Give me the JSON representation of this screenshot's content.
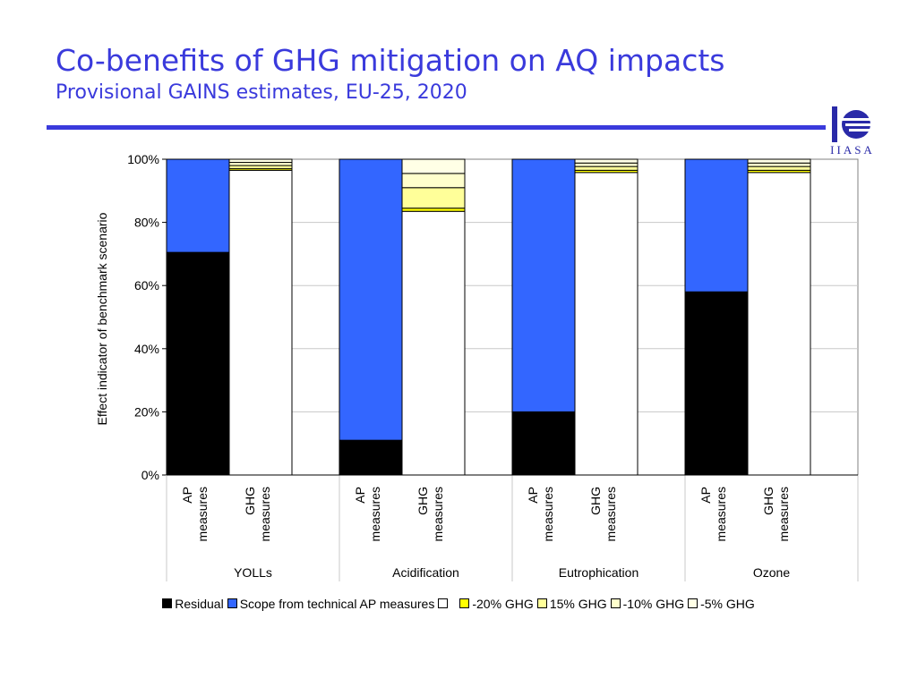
{
  "slide": {
    "title": "Co-benefits of GHG mitigation on AQ impacts",
    "subtitle": "Provisional GAINS estimates, EU-25, 2020",
    "title_color": "#3a3adc",
    "logo_text": "IIASA"
  },
  "chart_data": {
    "type": "bar",
    "stacked": true,
    "title": "",
    "xlabel": "",
    "ylabel": "Effect indicator of benchmark scenario",
    "ylim": [
      0,
      100
    ],
    "yticks": [
      "0%",
      "20%",
      "40%",
      "60%",
      "80%",
      "100%"
    ],
    "groups": [
      {
        "label": "YOLLs",
        "bars": [
          {
            "label": "AP measures",
            "segments": [
              {
                "series": "Residual",
                "value": 70.5
              },
              {
                "series": "Scope from technical AP measures",
                "value": 29.5
              }
            ]
          },
          {
            "label": "GHG measures",
            "segments": [
              {
                "series": "",
                "value": 96.5
              },
              {
                "series": "-20% GHG",
                "value": 0.5
              },
              {
                "series": "15% GHG",
                "value": 1.0
              },
              {
                "series": "-10% GHG",
                "value": 1.0
              },
              {
                "series": "-5% GHG",
                "value": 1.0
              }
            ]
          }
        ]
      },
      {
        "label": "Acidification",
        "bars": [
          {
            "label": "AP measures",
            "segments": [
              {
                "series": "Residual",
                "value": 11
              },
              {
                "series": "Scope from technical AP measures",
                "value": 89
              }
            ]
          },
          {
            "label": "GHG measures",
            "segments": [
              {
                "series": "",
                "value": 83.5
              },
              {
                "series": "-20% GHG",
                "value": 1.0
              },
              {
                "series": "15% GHG",
                "value": 6.5
              },
              {
                "series": "-10% GHG",
                "value": 4.5
              },
              {
                "series": "-5% GHG",
                "value": 4.5
              }
            ]
          }
        ]
      },
      {
        "label": "Eutrophication",
        "bars": [
          {
            "label": "AP measures",
            "segments": [
              {
                "series": "Residual",
                "value": 20
              },
              {
                "series": "Scope from technical AP measures",
                "value": 80
              }
            ]
          },
          {
            "label": "GHG measures",
            "segments": [
              {
                "series": "",
                "value": 95.8
              },
              {
                "series": "-20% GHG",
                "value": 0.7
              },
              {
                "series": "15% GHG",
                "value": 1.2
              },
              {
                "series": "-10% GHG",
                "value": 1.1
              },
              {
                "series": "-5% GHG",
                "value": 1.2
              }
            ]
          }
        ]
      },
      {
        "label": "Ozone",
        "bars": [
          {
            "label": "AP measures",
            "segments": [
              {
                "series": "Residual",
                "value": 58
              },
              {
                "series": "Scope from technical AP measures",
                "value": 42
              }
            ]
          },
          {
            "label": "GHG measures",
            "segments": [
              {
                "series": "",
                "value": 95.8
              },
              {
                "series": "-20% GHG",
                "value": 0.7
              },
              {
                "series": "15% GHG",
                "value": 1.2
              },
              {
                "series": "-10% GHG",
                "value": 1.1
              },
              {
                "series": "-5% GHG",
                "value": 1.2
              }
            ]
          }
        ]
      }
    ],
    "legend": [
      {
        "label": "Residual",
        "color": "#000000"
      },
      {
        "label": "Scope from technical AP measures",
        "color": "#3366ff"
      },
      {
        "label": "",
        "color": "#ffffff"
      },
      {
        "label": "-20% GHG",
        "color": "#ffff00"
      },
      {
        "label": "15% GHG",
        "color": "#ffff99"
      },
      {
        "label": "-10% GHG",
        "color": "#ffffcc"
      },
      {
        "label": "-5% GHG",
        "color": "#ffffe6"
      }
    ],
    "legend_position": "bottom",
    "grid": true
  }
}
